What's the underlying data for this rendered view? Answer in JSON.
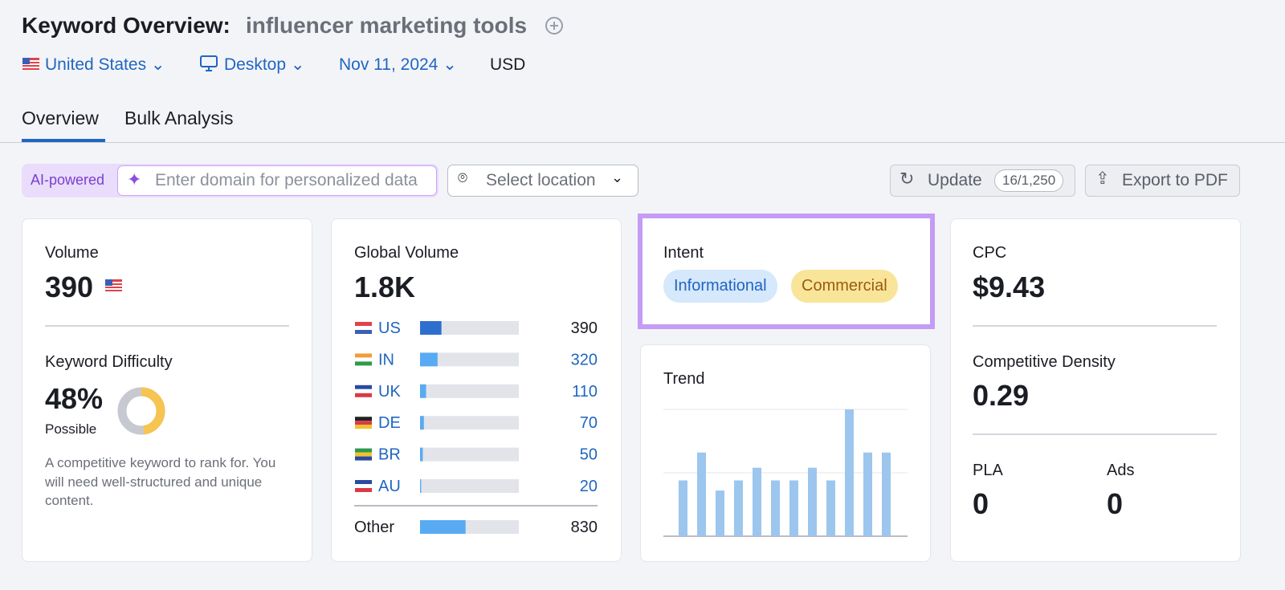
{
  "header": {
    "title": "Keyword Overview:",
    "keyword": "influencer marketing tools"
  },
  "filters": {
    "country": "United States",
    "device": "Desktop",
    "date": "Nov 11, 2024",
    "currency": "USD"
  },
  "tabs": [
    "Overview",
    "Bulk Analysis"
  ],
  "toolbar": {
    "ai_badge": "AI-powered",
    "domain_placeholder": "Enter domain for personalized data",
    "location_placeholder": "Select location",
    "update": "Update",
    "update_count": "16/1,250",
    "export": "Export to PDF"
  },
  "volume": {
    "label": "Volume",
    "value": "390"
  },
  "keyword_difficulty": {
    "label": "Keyword Difficulty",
    "value": 48,
    "value_label": "48%",
    "level": "Possible",
    "description": "A competitive keyword to rank for. You will need well-structured and unique content."
  },
  "global_volume": {
    "label": "Global Volume",
    "value": 1800,
    "value_label": "1.8K",
    "countries": [
      {
        "code": "US",
        "value": 390
      },
      {
        "code": "IN",
        "value": 320
      },
      {
        "code": "UK",
        "value": 110
      },
      {
        "code": "DE",
        "value": 70
      },
      {
        "code": "BR",
        "value": 50
      },
      {
        "code": "AU",
        "value": 20
      }
    ],
    "other": {
      "label": "Other",
      "value": 830
    }
  },
  "intent": {
    "label": "Intent",
    "tags": [
      "Informational",
      "Commercial"
    ]
  },
  "trend": {
    "label": "Trend",
    "values": [
      0.44,
      0.66,
      0.36,
      0.44,
      0.54,
      0.44,
      0.44,
      0.54,
      0.44,
      1.0,
      0.66,
      0.66
    ],
    "ylim": [
      0,
      1
    ],
    "yticks": [
      0,
      0.5,
      1
    ]
  },
  "cpc": {
    "label": "CPC",
    "value": "$9.43"
  },
  "competitive_density": {
    "label": "Competitive Density",
    "value": "0.29"
  },
  "pla": {
    "label": "PLA",
    "value": "0"
  },
  "ads": {
    "label": "Ads",
    "value": "0"
  }
}
